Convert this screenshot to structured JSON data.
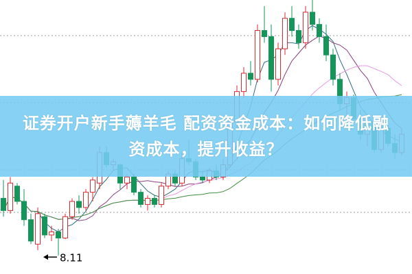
{
  "banner": {
    "title_line1": "证券开户新手薅羊毛 配资资金成本：如何降低融",
    "title_line2": "资成本，提升收益？"
  },
  "chart_data": {
    "type": "candlestick",
    "ylim": [
      7.9,
      12.3
    ],
    "grid": "dotted horizontal",
    "annotation": {
      "text": "8.11",
      "candle_index": 8,
      "arrow": "left"
    },
    "colors": {
      "up": "#d9282f",
      "down": "#14955a",
      "ma5": "#2a6f7f",
      "ma10": "#8a3d7a",
      "ma20": "#e59ae0",
      "ma30": "#3f8a3f",
      "background": "#ffffff",
      "banner": "#76ccf2"
    },
    "moving_averages": [
      5,
      10,
      20,
      30
    ],
    "ohlc": [
      [
        9.05,
        9.35,
        8.75,
        8.85
      ],
      [
        8.85,
        9.4,
        8.8,
        9.3
      ],
      [
        9.25,
        9.3,
        8.95,
        9.0
      ],
      [
        9.0,
        9.2,
        8.6,
        8.7
      ],
      [
        8.7,
        8.8,
        8.3,
        8.35
      ],
      [
        8.3,
        8.9,
        8.2,
        8.8
      ],
      [
        8.75,
        8.8,
        8.4,
        8.45
      ],
      [
        8.45,
        8.6,
        8.35,
        8.5
      ],
      [
        8.5,
        8.55,
        8.11,
        8.4
      ],
      [
        8.4,
        8.8,
        8.38,
        8.75
      ],
      [
        8.75,
        9.05,
        8.7,
        9.0
      ],
      [
        9.0,
        9.1,
        8.8,
        8.9
      ],
      [
        8.9,
        9.2,
        8.85,
        9.15
      ],
      [
        9.15,
        9.4,
        9.0,
        9.35
      ],
      [
        9.3,
        9.9,
        9.2,
        9.8
      ],
      [
        9.8,
        9.9,
        9.55,
        9.6
      ],
      [
        9.6,
        9.7,
        9.5,
        9.65
      ],
      [
        9.6,
        9.62,
        9.2,
        9.3
      ],
      [
        9.3,
        9.45,
        9.2,
        9.4
      ],
      [
        9.4,
        9.45,
        9.1,
        9.15
      ],
      [
        9.15,
        9.2,
        8.9,
        8.95
      ],
      [
        8.95,
        9.1,
        8.85,
        9.05
      ],
      [
        9.05,
        9.1,
        8.9,
        8.95
      ],
      [
        8.95,
        9.3,
        8.9,
        9.25
      ],
      [
        9.25,
        9.5,
        9.2,
        9.45
      ],
      [
        9.45,
        9.5,
        9.25,
        9.3
      ],
      [
        9.3,
        9.8,
        9.25,
        9.7
      ],
      [
        9.7,
        10.0,
        9.6,
        9.65
      ],
      [
        9.65,
        9.7,
        9.35,
        9.4
      ],
      [
        9.4,
        9.5,
        9.3,
        9.35
      ],
      [
        9.35,
        9.55,
        9.3,
        9.5
      ],
      [
        9.5,
        9.6,
        9.35,
        9.4
      ],
      [
        9.4,
        9.7,
        9.35,
        9.6
      ],
      [
        9.6,
        10.4,
        9.55,
        10.3
      ],
      [
        10.3,
        10.9,
        10.2,
        10.8
      ],
      [
        10.8,
        11.2,
        10.7,
        11.1
      ],
      [
        11.1,
        11.3,
        10.9,
        11.0
      ],
      [
        11.0,
        11.9,
        10.95,
        11.8
      ],
      [
        11.8,
        12.2,
        11.6,
        11.7
      ],
      [
        11.7,
        11.9,
        10.8,
        11.0
      ],
      [
        11.0,
        11.6,
        10.9,
        11.5
      ],
      [
        11.5,
        12.1,
        11.4,
        12.0
      ],
      [
        12.0,
        12.2,
        11.7,
        11.8
      ],
      [
        11.8,
        11.9,
        11.5,
        11.6
      ],
      [
        11.6,
        12.2,
        11.5,
        12.1
      ],
      [
        12.1,
        12.3,
        11.8,
        11.9
      ],
      [
        11.9,
        12.0,
        11.6,
        11.7
      ],
      [
        11.7,
        11.9,
        11.3,
        11.4
      ],
      [
        11.4,
        11.5,
        10.9,
        11.0
      ],
      [
        11.0,
        11.1,
        10.5,
        10.6
      ],
      [
        10.6,
        10.8,
        10.4,
        10.7
      ],
      [
        10.7,
        10.75,
        10.3,
        10.35
      ],
      [
        10.35,
        10.5,
        10.0,
        10.1
      ],
      [
        10.1,
        10.4,
        9.9,
        10.3
      ],
      [
        10.3,
        10.35,
        9.8,
        9.85
      ],
      [
        9.85,
        10.3,
        9.8,
        10.2
      ],
      [
        10.2,
        10.25,
        9.9,
        9.95
      ],
      [
        9.95,
        10.1,
        9.7,
        9.8
      ],
      [
        9.8,
        10.2,
        9.75,
        10.1
      ]
    ]
  }
}
